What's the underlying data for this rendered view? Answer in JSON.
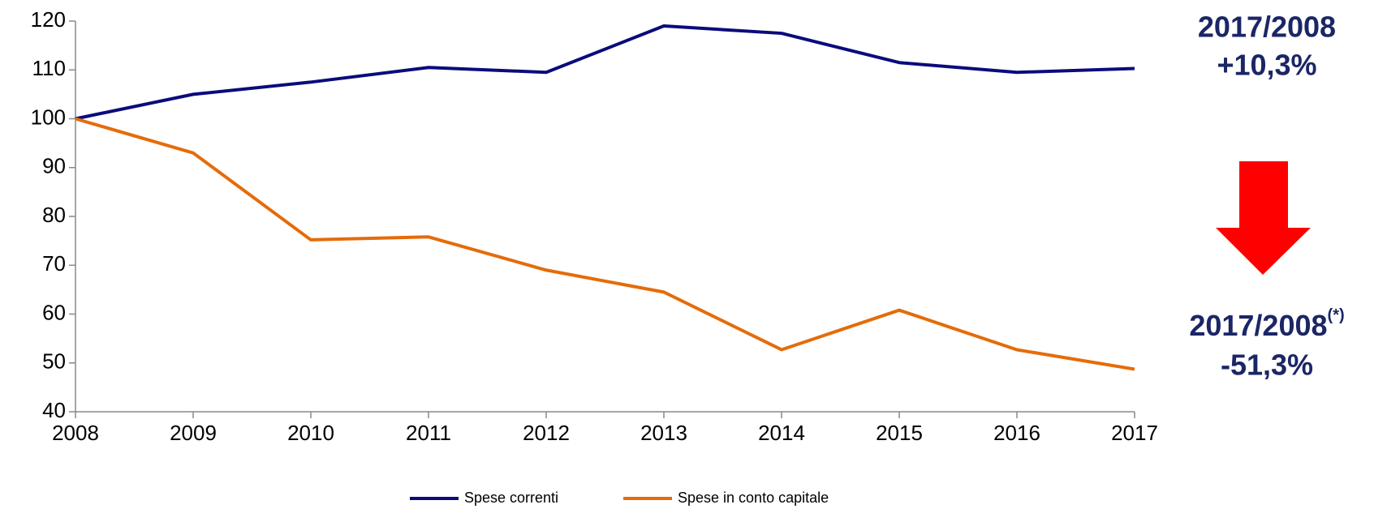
{
  "chart_data": {
    "type": "line",
    "x": [
      2008,
      2009,
      2010,
      2011,
      2012,
      2013,
      2014,
      2015,
      2016,
      2017
    ],
    "xlim": [
      2008,
      2017
    ],
    "xticks": [
      2008,
      2009,
      2010,
      2011,
      2012,
      2013,
      2014,
      2015,
      2016,
      2017
    ],
    "ylim": [
      40,
      120
    ],
    "yticks": [
      40,
      50,
      60,
      70,
      80,
      90,
      100,
      110,
      120
    ],
    "grid": false,
    "legend": "bottom",
    "series": [
      {
        "name": "Spese correnti",
        "color": "#0b0b7c",
        "values": [
          100,
          105,
          107.5,
          110.5,
          109.5,
          119,
          117.5,
          111.5,
          109.5,
          110.3
        ]
      },
      {
        "name": "Spese in conto capitale",
        "color": "#e46c0a",
        "values": [
          100,
          93,
          75.2,
          75.8,
          69,
          64.5,
          52.7,
          60.8,
          52.7,
          48.7
        ]
      }
    ],
    "annotations": [
      "2017/2008",
      "+10,3%",
      "2017/2008",
      "(*)",
      "-51,3%"
    ]
  }
}
